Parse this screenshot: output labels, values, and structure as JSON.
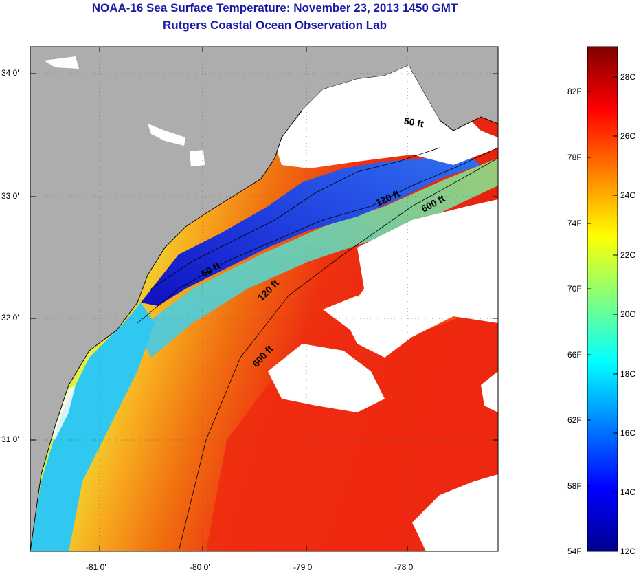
{
  "header": {
    "title": "NOAA-16 Sea Surface Temperature:  November 23, 2013 1450 GMT",
    "subtitle": "Rutgers Coastal Ocean Observation Lab"
  },
  "map": {
    "latitude_labels": [
      "34 0'",
      "33 0'",
      "32 0'",
      "31 0'"
    ],
    "longitude_labels": [
      "-81 0'",
      "-80 0'",
      "-79 0'",
      "-78 0'"
    ],
    "isobath_labels": [
      "50 ft",
      "120 ft",
      "600 ft",
      "50 ft",
      "120 ft",
      "600 ft"
    ],
    "colors": {
      "land": "#adadad",
      "cloud": "#ffffff",
      "coastline": "#000000"
    }
  },
  "colorbar": {
    "fahrenheit_labels": [
      "82F",
      "78F",
      "74F",
      "70F",
      "66F",
      "62F",
      "58F",
      "54F"
    ],
    "celsius_labels": [
      "28C",
      "26C",
      "24C",
      "22C",
      "20C",
      "18C",
      "16C",
      "14C",
      "12C"
    ],
    "colors": [
      "#00008f",
      "#0000ff",
      "#0080ff",
      "#00ffff",
      "#80ff80",
      "#ffff00",
      "#ff8000",
      "#ff0000",
      "#800000"
    ]
  }
}
